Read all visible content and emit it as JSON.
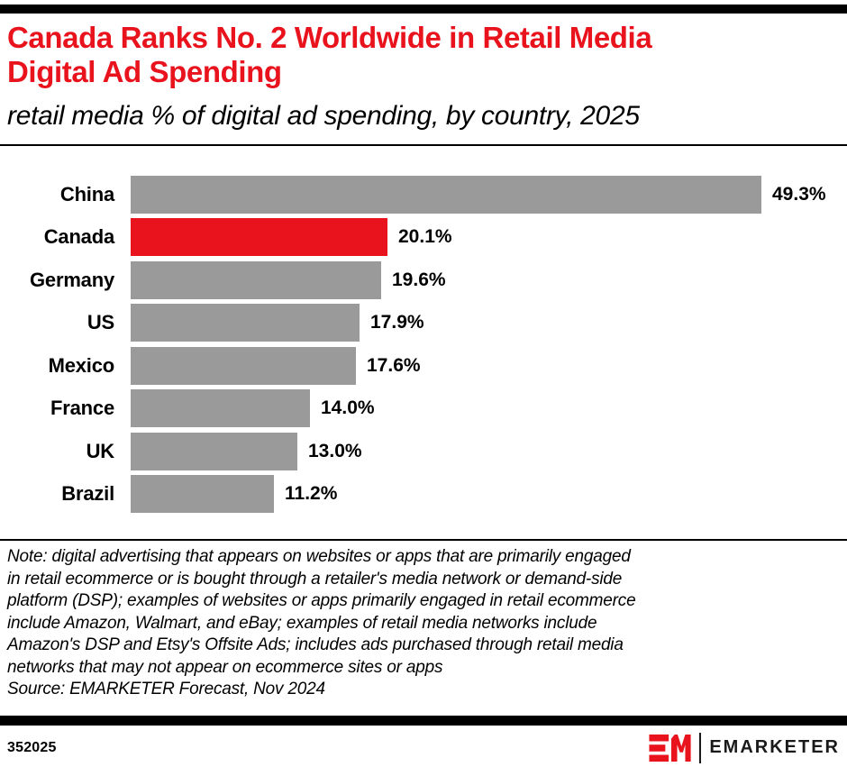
{
  "header": {
    "title": "Canada Ranks No. 2 Worldwide in Retail Media Digital Ad Spending",
    "title_lines": [
      "Canada Ranks No. 2 Worldwide in Retail Media",
      "Digital Ad Spending"
    ],
    "subtitle": "retail media % of digital ad spending, by country, 2025"
  },
  "chart_data": {
    "type": "bar",
    "orientation": "horizontal",
    "title": "Canada Ranks No. 2 Worldwide in Retail Media Digital Ad Spending",
    "subtitle": "retail media % of digital ad spending, by country, 2025",
    "categories": [
      "China",
      "Canada",
      "Germany",
      "US",
      "Mexico",
      "France",
      "UK",
      "Brazil"
    ],
    "values": [
      49.3,
      20.1,
      19.6,
      17.9,
      17.6,
      14.0,
      13.0,
      11.2
    ],
    "value_labels": [
      "49.3%",
      "20.1%",
      "19.6%",
      "17.9%",
      "17.6%",
      "14.0%",
      "13.0%",
      "11.2%"
    ],
    "unit": "%",
    "xlim": [
      0,
      52
    ],
    "grid": false,
    "legend": "none",
    "highlight_category": "Canada",
    "bar_color": "#9a9a9a",
    "highlight_color": "#e8131d"
  },
  "note": {
    "lines": [
      "Note: digital advertising that appears on websites or apps that are primarily engaged",
      "in retail ecommerce or is bought through a retailer's media network or demand-side",
      "platform (DSP); examples of websites or apps primarily engaged in retail ecommerce",
      "include Amazon, Walmart, and eBay; examples of retail media networks include",
      "Amazon's DSP and Etsy's Offsite Ads; includes ads purchased through retail media",
      "networks that may not appear on ecommerce sites or apps"
    ],
    "source": "Source: EMARKETER Forecast, Nov 2024"
  },
  "footer": {
    "chart_id": "352025",
    "brand": "EMARKETER"
  },
  "colors": {
    "accent_red": "#e8131d",
    "bar_gray": "#9a9a9a",
    "bar_black": "#000000"
  }
}
